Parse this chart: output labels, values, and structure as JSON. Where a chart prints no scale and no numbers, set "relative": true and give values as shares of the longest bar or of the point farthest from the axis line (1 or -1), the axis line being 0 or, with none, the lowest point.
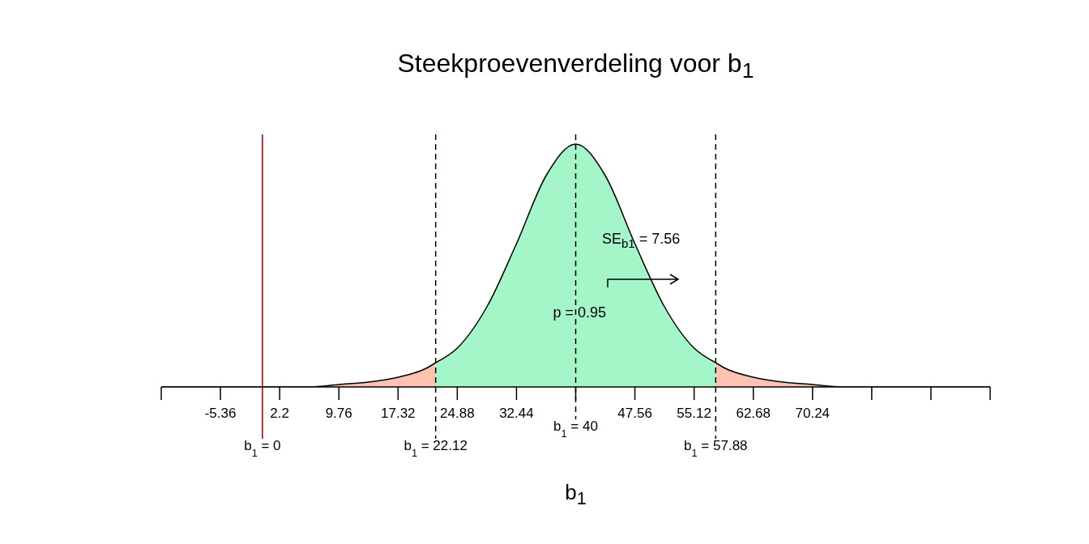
{
  "chart_data": {
    "type": "area",
    "title": "Steekproevenverdeling voor b$_{1}$",
    "xlabel": "b$_{1}$",
    "relative": true,
    "xlim": [
      -12.92,
      92.92
    ],
    "xticks": [
      {
        "value": -12.92,
        "label": null
      },
      -5.36,
      2.2,
      9.76,
      17.32,
      24.88,
      32.44,
      {
        "value": 40,
        "label": null
      },
      47.56,
      55.12,
      62.68,
      70.24,
      {
        "value": 77.8,
        "label": null
      },
      {
        "value": 85.36,
        "label": null
      },
      {
        "value": 92.92,
        "label": null
      }
    ],
    "series": [
      {
        "color": "#fdc3b0",
        "x": [
          -12.92,
          -9.14,
          -5.36,
          -1.58,
          2.2,
          5.98,
          9.76,
          13.54,
          17.32,
          21.1,
          22.12
        ],
        "values": [
          0,
          0,
          0,
          0,
          0,
          0,
          0.01,
          0.02,
          0.04,
          0.08,
          0.1
        ]
      },
      {
        "color": "#a4f5c8",
        "x": [
          22.12,
          24.88,
          28.66,
          32.44,
          36.22,
          40,
          43.78,
          47.56,
          51.34,
          55.12,
          57.88
        ],
        "values": [
          0.1,
          0.16,
          0.33,
          0.59,
          0.87,
          1,
          0.87,
          0.59,
          0.33,
          0.16,
          0.1
        ]
      },
      {
        "color": "#fdc3b0",
        "x": [
          57.88,
          58.9,
          62.68,
          66.46,
          70.24,
          74.02,
          77.8,
          81.58,
          85.36,
          89.14,
          92.92
        ],
        "values": [
          0.1,
          0.08,
          0.04,
          0.02,
          0.01,
          0,
          0,
          0,
          0,
          0,
          0
        ]
      }
    ],
    "ref_lines": [
      {
        "axis": "x",
        "value": 0,
        "label": "b$_{1}$ = 0",
        "color": "#8b0000",
        "line_style": "solid"
      },
      {
        "axis": "x",
        "value": 22.12,
        "label": "b$_{1}$ = 22.12",
        "color": "#000000",
        "line_style": "dashed"
      },
      {
        "axis": "x",
        "value": 40,
        "label": "b$_{1}$ = 40",
        "color": "#000000",
        "line_style": "dashed"
      },
      {
        "axis": "x",
        "value": 57.88,
        "label": "b$_{1}$ = 57.88",
        "color": "#000000",
        "line_style": "dashed"
      }
    ],
    "annotations": [
      "p = 0.95",
      "SE$_{b1}$ = 7.56"
    ]
  }
}
